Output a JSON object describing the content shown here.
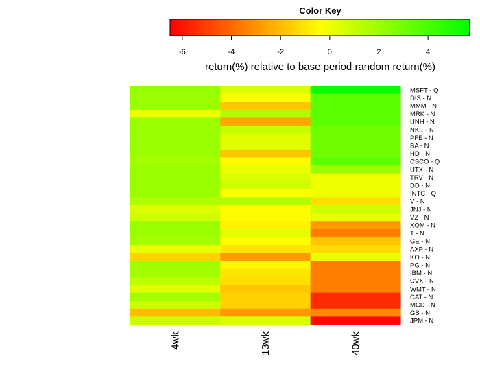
{
  "chart_data": {
    "type": "heatmap",
    "color_key": {
      "title": "Color Key",
      "xlabel": "return(%) relative to base period random return(%)",
      "range": [
        -6.5,
        5.7
      ],
      "ticks": [
        -6,
        -4,
        -2,
        0,
        2,
        4
      ],
      "colors": [
        "#ff0000",
        "#ff8000",
        "#ffff00",
        "#80ff00",
        "#00ff00"
      ]
    },
    "columns": [
      "4wk",
      "13wk",
      "40wk"
    ],
    "rows": [
      "MSFT - Q",
      "DIS - N",
      "MMM - N",
      "MRK - N",
      "UNH - N",
      "NKE - N",
      "PFE - N",
      "BA - N",
      "HD - N",
      "CSCO - Q",
      "UTX - N",
      "TRV - N",
      "DD - N",
      "INTC - Q",
      "V - N",
      "JNJ - N",
      "VZ - N",
      "XOM - N",
      "T - N",
      "GE - N",
      "AXP - N",
      "KO - N",
      "PG - N",
      "IBM - N",
      "CVX - N",
      "WMT - N",
      "CAT - N",
      "MCD - N",
      "GS - N",
      "JPM - N"
    ],
    "values": [
      [
        2.2,
        0.5,
        5.5
      ],
      [
        2.0,
        -0.3,
        3.5
      ],
      [
        2.1,
        -1.8,
        3.5
      ],
      [
        0.0,
        1.5,
        3.5
      ],
      [
        2.0,
        -2.5,
        3.5
      ],
      [
        2.0,
        1.0,
        3.0
      ],
      [
        2.0,
        0.3,
        3.0
      ],
      [
        2.1,
        0.3,
        3.0
      ],
      [
        2.0,
        -1.8,
        3.0
      ],
      [
        1.8,
        -0.5,
        3.5
      ],
      [
        2.0,
        0.1,
        2.0
      ],
      [
        2.0,
        0.5,
        0.0
      ],
      [
        2.0,
        0.8,
        0.0
      ],
      [
        2.0,
        -0.5,
        0.0
      ],
      [
        1.5,
        1.5,
        -1.2
      ],
      [
        0.4,
        -0.5,
        0.8
      ],
      [
        0.8,
        -0.5,
        0.2
      ],
      [
        2.0,
        -0.7,
        -2.8
      ],
      [
        2.0,
        0.2,
        -3.5
      ],
      [
        1.8,
        -0.3,
        -1.8
      ],
      [
        0.1,
        -1.0,
        -1.3
      ],
      [
        -1.4,
        -2.8,
        0.1
      ],
      [
        1.8,
        -0.6,
        -3.5
      ],
      [
        1.8,
        -1.0,
        -3.5
      ],
      [
        1.2,
        -1.2,
        -3.5
      ],
      [
        0.3,
        -1.8,
        -3.5
      ],
      [
        1.8,
        -1.5,
        -5.5
      ],
      [
        0.9,
        -1.5,
        -5.5
      ],
      [
        -2.0,
        -2.8,
        -3.2
      ],
      [
        0.9,
        0.5,
        -6.3
      ]
    ]
  }
}
